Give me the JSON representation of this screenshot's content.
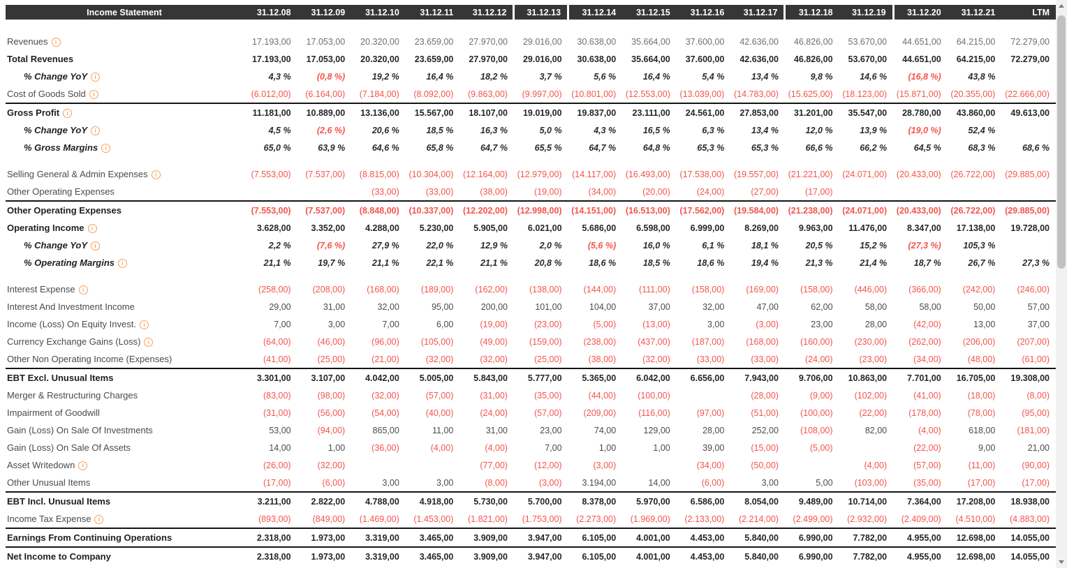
{
  "colors": {
    "header_bg": "#363636",
    "negative_red": "#f4544c",
    "icon_orange": "#f5a05a",
    "separator_black": "#141414"
  },
  "header": {
    "label": "Income Statement",
    "columns": [
      "31.12.08",
      "31.12.09",
      "31.12.10",
      "31.12.11",
      "31.12.12",
      "31.12.13",
      "31.12.14",
      "31.12.15",
      "31.12.16",
      "31.12.17",
      "31.12.18",
      "31.12.19",
      "31.12.20",
      "31.12.21",
      "LTM"
    ],
    "group_breaks": [
      5,
      6,
      10,
      12
    ]
  },
  "rows": [
    {
      "label": "Revenues",
      "type": "item",
      "icon": true,
      "muted": true,
      "values": [
        "17.193,00",
        "17.053,00",
        "20.320,00",
        "23.659,00",
        "27.970,00",
        "29.016,00",
        "30.638,00",
        "35.664,00",
        "37.600,00",
        "42.636,00",
        "46.826,00",
        "53.670,00",
        "44.651,00",
        "64.215,00",
        "72.279,00"
      ]
    },
    {
      "label": "Total Revenues",
      "type": "total",
      "icon": false,
      "values": [
        "17.193,00",
        "17.053,00",
        "20.320,00",
        "23.659,00",
        "27.970,00",
        "29.016,00",
        "30.638,00",
        "35.664,00",
        "37.600,00",
        "42.636,00",
        "46.826,00",
        "53.670,00",
        "44.651,00",
        "64.215,00",
        "72.279,00"
      ]
    },
    {
      "label": "% Change YoY",
      "type": "pct",
      "icon": true,
      "values": [
        "4,3 %",
        "(0,8 %)",
        "19,2 %",
        "16,4 %",
        "18,2 %",
        "3,7 %",
        "5,6 %",
        "16,4 %",
        "5,4 %",
        "13,4 %",
        "9,8 %",
        "14,6 %",
        "(16,8 %)",
        "43,8 %",
        ""
      ]
    },
    {
      "label": "Cost of Goods Sold",
      "type": "item",
      "icon": true,
      "values": [
        "(6.012,00)",
        "(6.164,00)",
        "(7.184,00)",
        "(8.092,00)",
        "(9.863,00)",
        "(9.997,00)",
        "(10.801,00)",
        "(12.553,00)",
        "(13.039,00)",
        "(14.783,00)",
        "(15.625,00)",
        "(18.123,00)",
        "(15.871,00)",
        "(20.355,00)",
        "(22.666,00)"
      ]
    },
    {
      "label": "Gross Profit",
      "type": "total",
      "icon": true,
      "sep_above": true,
      "values": [
        "11.181,00",
        "10.889,00",
        "13.136,00",
        "15.567,00",
        "18.107,00",
        "19.019,00",
        "19.837,00",
        "23.111,00",
        "24.561,00",
        "27.853,00",
        "31.201,00",
        "35.547,00",
        "28.780,00",
        "43.860,00",
        "49.613,00"
      ]
    },
    {
      "label": "% Change YoY",
      "type": "pct",
      "icon": true,
      "values": [
        "4,5 %",
        "(2,6 %)",
        "20,6 %",
        "18,5 %",
        "16,3 %",
        "5,0 %",
        "4,3 %",
        "16,5 %",
        "6,3 %",
        "13,4 %",
        "12,0 %",
        "13,9 %",
        "(19,0 %)",
        "52,4 %",
        ""
      ]
    },
    {
      "label": "% Gross Margins",
      "type": "pct",
      "icon": true,
      "values": [
        "65,0 %",
        "63,9 %",
        "64,6 %",
        "65,8 %",
        "64,7 %",
        "65,5 %",
        "64,7 %",
        "64,8 %",
        "65,3 %",
        "65,3 %",
        "66,6 %",
        "66,2 %",
        "64,5 %",
        "68,3 %",
        "68,6 %"
      ]
    },
    {
      "label": "Selling General & Admin Expenses",
      "type": "item",
      "icon": true,
      "gap_above": true,
      "values": [
        "(7.553,00)",
        "(7.537,00)",
        "(8.815,00)",
        "(10.304,00)",
        "(12.164,00)",
        "(12.979,00)",
        "(14.117,00)",
        "(16.493,00)",
        "(17.538,00)",
        "(19.557,00)",
        "(21.221,00)",
        "(24.071,00)",
        "(20.433,00)",
        "(26.722,00)",
        "(29.885,00)"
      ]
    },
    {
      "label": "Other Operating Expenses",
      "type": "item",
      "icon": false,
      "values": [
        "",
        "",
        "(33,00)",
        "(33,00)",
        "(38,00)",
        "(19,00)",
        "(34,00)",
        "(20,00)",
        "(24,00)",
        "(27,00)",
        "(17,00)",
        "",
        "",
        "",
        ""
      ]
    },
    {
      "label": "Other Operating Expenses",
      "type": "total",
      "icon": false,
      "sep_above": true,
      "values": [
        "(7.553,00)",
        "(7.537,00)",
        "(8.848,00)",
        "(10.337,00)",
        "(12.202,00)",
        "(12.998,00)",
        "(14.151,00)",
        "(16.513,00)",
        "(17.562,00)",
        "(19.584,00)",
        "(21.238,00)",
        "(24.071,00)",
        "(20.433,00)",
        "(26.722,00)",
        "(29.885,00)"
      ]
    },
    {
      "label": "Operating Income",
      "type": "total",
      "icon": true,
      "values": [
        "3.628,00",
        "3.352,00",
        "4.288,00",
        "5.230,00",
        "5.905,00",
        "6.021,00",
        "5.686,00",
        "6.598,00",
        "6.999,00",
        "8.269,00",
        "9.963,00",
        "11.476,00",
        "8.347,00",
        "17.138,00",
        "19.728,00"
      ]
    },
    {
      "label": "% Change YoY",
      "type": "pct",
      "icon": true,
      "values": [
        "2,2 %",
        "(7,6 %)",
        "27,9 %",
        "22,0 %",
        "12,9 %",
        "2,0 %",
        "(5,6 %)",
        "16,0 %",
        "6,1 %",
        "18,1 %",
        "20,5 %",
        "15,2 %",
        "(27,3 %)",
        "105,3 %",
        ""
      ]
    },
    {
      "label": "% Operating Margins",
      "type": "pct",
      "icon": true,
      "values": [
        "21,1 %",
        "19,7 %",
        "21,1 %",
        "22,1 %",
        "21,1 %",
        "20,8 %",
        "18,6 %",
        "18,5 %",
        "18,6 %",
        "19,4 %",
        "21,3 %",
        "21,4 %",
        "18,7 %",
        "26,7 %",
        "27,3 %"
      ]
    },
    {
      "label": "Interest Expense",
      "type": "item",
      "icon": true,
      "gap_above": true,
      "values": [
        "(258,00)",
        "(208,00)",
        "(168,00)",
        "(189,00)",
        "(162,00)",
        "(138,00)",
        "(144,00)",
        "(111,00)",
        "(158,00)",
        "(169,00)",
        "(158,00)",
        "(446,00)",
        "(366,00)",
        "(242,00)",
        "(246,00)"
      ]
    },
    {
      "label": "Interest And Investment Income",
      "type": "item",
      "icon": false,
      "values": [
        "29,00",
        "31,00",
        "32,00",
        "95,00",
        "200,00",
        "101,00",
        "104,00",
        "37,00",
        "32,00",
        "47,00",
        "62,00",
        "58,00",
        "58,00",
        "50,00",
        "57,00"
      ]
    },
    {
      "label": "Income (Loss) On Equity Invest.",
      "type": "item",
      "icon": true,
      "values": [
        "7,00",
        "3,00",
        "7,00",
        "6,00",
        "(19,00)",
        "(23,00)",
        "(5,00)",
        "(13,00)",
        "3,00",
        "(3,00)",
        "23,00",
        "28,00",
        "(42,00)",
        "13,00",
        "37,00"
      ]
    },
    {
      "label": "Currency Exchange Gains (Loss)",
      "type": "item",
      "icon": true,
      "values": [
        "(64,00)",
        "(46,00)",
        "(96,00)",
        "(105,00)",
        "(49,00)",
        "(159,00)",
        "(238,00)",
        "(437,00)",
        "(187,00)",
        "(168,00)",
        "(160,00)",
        "(230,00)",
        "(262,00)",
        "(206,00)",
        "(207,00)"
      ]
    },
    {
      "label": "Other Non Operating Income (Expenses)",
      "type": "item",
      "icon": false,
      "values": [
        "(41,00)",
        "(25,00)",
        "(21,00)",
        "(32,00)",
        "(32,00)",
        "(25,00)",
        "(38,00)",
        "(32,00)",
        "(33,00)",
        "(33,00)",
        "(24,00)",
        "(23,00)",
        "(34,00)",
        "(48,00)",
        "(61,00)"
      ]
    },
    {
      "label": "EBT Excl. Unusual Items",
      "type": "total",
      "icon": false,
      "sep_above": true,
      "values": [
        "3.301,00",
        "3.107,00",
        "4.042,00",
        "5.005,00",
        "5.843,00",
        "5.777,00",
        "5.365,00",
        "6.042,00",
        "6.656,00",
        "7.943,00",
        "9.706,00",
        "10.863,00",
        "7.701,00",
        "16.705,00",
        "19.308,00"
      ]
    },
    {
      "label": "Merger & Restructuring Charges",
      "type": "item",
      "icon": false,
      "values": [
        "(83,00)",
        "(98,00)",
        "(32,00)",
        "(57,00)",
        "(31,00)",
        "(35,00)",
        "(44,00)",
        "(100,00)",
        "",
        "(28,00)",
        "(9,00)",
        "(102,00)",
        "(41,00)",
        "(18,00)",
        "(8,00)"
      ]
    },
    {
      "label": "Impairment of Goodwill",
      "type": "item",
      "icon": false,
      "values": [
        "(31,00)",
        "(56,00)",
        "(54,00)",
        "(40,00)",
        "(24,00)",
        "(57,00)",
        "(209,00)",
        "(116,00)",
        "(97,00)",
        "(51,00)",
        "(100,00)",
        "(22,00)",
        "(178,00)",
        "(78,00)",
        "(95,00)"
      ]
    },
    {
      "label": "Gain (Loss) On Sale Of Investments",
      "type": "item",
      "icon": false,
      "values": [
        "53,00",
        "(94,00)",
        "865,00",
        "11,00",
        "31,00",
        "23,00",
        "74,00",
        "129,00",
        "28,00",
        "252,00",
        "(108,00)",
        "82,00",
        "(4,00)",
        "618,00",
        "(181,00)"
      ]
    },
    {
      "label": "Gain (Loss) On Sale Of Assets",
      "type": "item",
      "icon": false,
      "values": [
        "14,00",
        "1,00",
        "(36,00)",
        "(4,00)",
        "(4,00)",
        "7,00",
        "1,00",
        "1,00",
        "39,00",
        "(15,00)",
        "(5,00)",
        "",
        "(22,00)",
        "9,00",
        "21,00"
      ]
    },
    {
      "label": "Asset Writedown",
      "type": "item",
      "icon": true,
      "values": [
        "(26,00)",
        "(32,00)",
        "",
        "",
        "(77,00)",
        "(12,00)",
        "(3,00)",
        "",
        "(34,00)",
        "(50,00)",
        "",
        "(4,00)",
        "(57,00)",
        "(11,00)",
        "(90,00)"
      ]
    },
    {
      "label": "Other Unusual Items",
      "type": "item",
      "icon": false,
      "values": [
        "(17,00)",
        "(6,00)",
        "3,00",
        "3,00",
        "(8,00)",
        "(3,00)",
        "3.194,00",
        "14,00",
        "(6,00)",
        "3,00",
        "5,00",
        "(103,00)",
        "(35,00)",
        "(17,00)",
        "(17,00)"
      ]
    },
    {
      "label": "EBT Incl. Unusual Items",
      "type": "total",
      "icon": false,
      "sep_above": true,
      "values": [
        "3.211,00",
        "2.822,00",
        "4.788,00",
        "4.918,00",
        "5.730,00",
        "5.700,00",
        "8.378,00",
        "5.970,00",
        "6.586,00",
        "8.054,00",
        "9.489,00",
        "10.714,00",
        "7.364,00",
        "17.208,00",
        "18.938,00"
      ]
    },
    {
      "label": "Income Tax Expense",
      "type": "item",
      "icon": true,
      "values": [
        "(893,00)",
        "(849,00)",
        "(1.469,00)",
        "(1.453,00)",
        "(1.821,00)",
        "(1.753,00)",
        "(2.273,00)",
        "(1.969,00)",
        "(2.133,00)",
        "(2.214,00)",
        "(2.499,00)",
        "(2.932,00)",
        "(2.409,00)",
        "(4.510,00)",
        "(4.883,00)"
      ]
    },
    {
      "label": "Earnings From Continuing Operations",
      "type": "total",
      "icon": false,
      "sep_above": true,
      "values": [
        "2.318,00",
        "1.973,00",
        "3.319,00",
        "3.465,00",
        "3.909,00",
        "3.947,00",
        "6.105,00",
        "4.001,00",
        "4.453,00",
        "5.840,00",
        "6.990,00",
        "7.782,00",
        "4.955,00",
        "12.698,00",
        "14.055,00"
      ]
    },
    {
      "label": "Net Income to Company",
      "type": "total",
      "icon": false,
      "sep_above": true,
      "values": [
        "2.318,00",
        "1.973,00",
        "3.319,00",
        "3.465,00",
        "3.909,00",
        "3.947,00",
        "6.105,00",
        "4.001,00",
        "4.453,00",
        "5.840,00",
        "6.990,00",
        "7.782,00",
        "4.955,00",
        "12.698,00",
        "14.055,00"
      ]
    }
  ]
}
